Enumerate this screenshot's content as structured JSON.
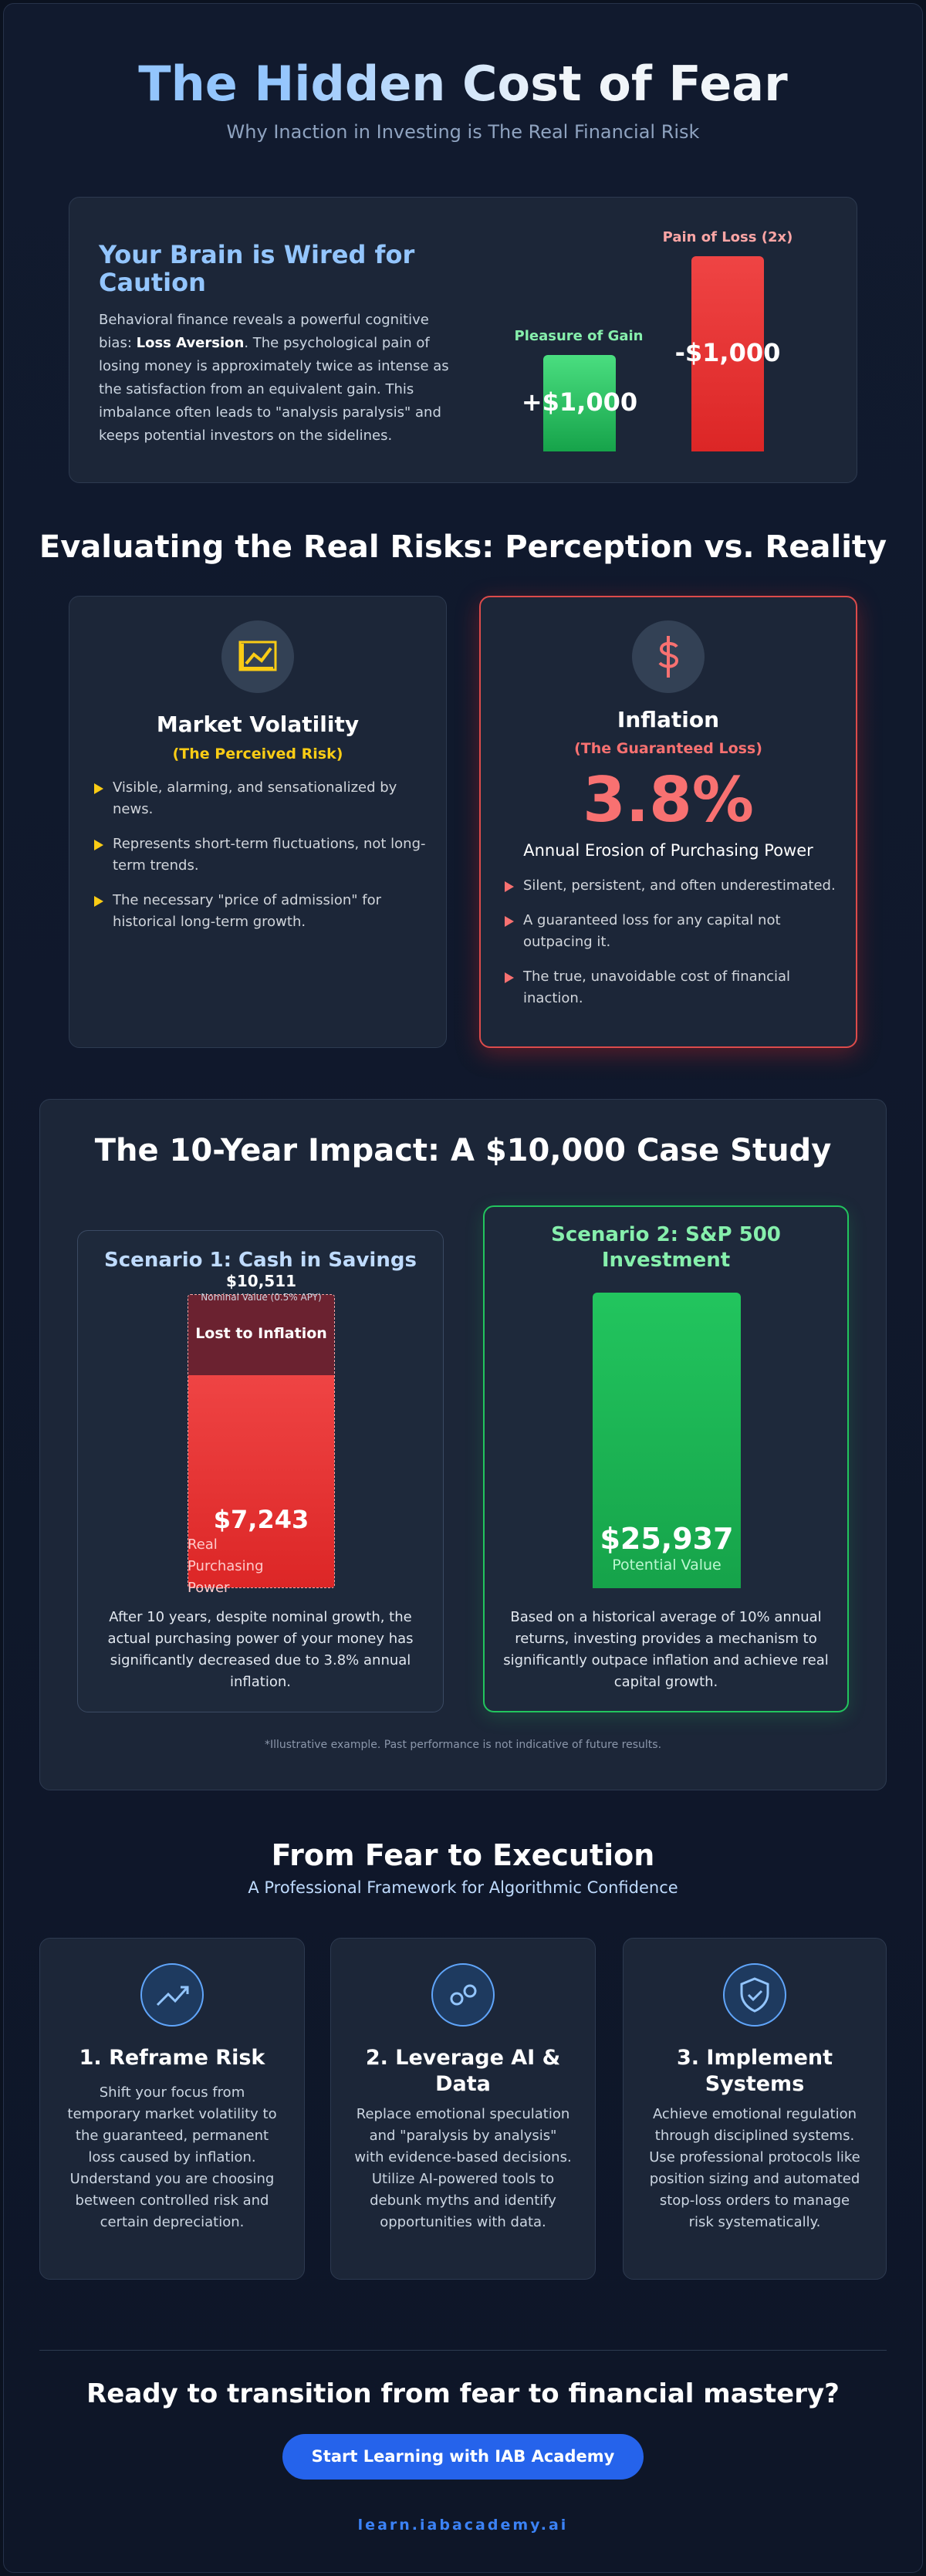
{
  "header": {
    "title": "The Hidden Cost of Fear",
    "subtitle": "Why Inaction in Investing is The Real Financial Risk"
  },
  "loss_aversion": {
    "heading": "Your Brain is Wired for Caution",
    "text_before": "Behavioral finance reveals a powerful cognitive bias: ",
    "bold": "Loss Aversion",
    "text_after": ". The psychological pain of losing money is approximately twice as intense as the satisfaction from an equivalent gain. This imbalance often leads to \"analysis paralysis\" and keeps potential investors on the sidelines.",
    "gain_label": "Pleasure of Gain",
    "gain_value": "+$1,000",
    "loss_label": "Pain of Loss (2x)",
    "loss_value": "-$1,000"
  },
  "risks": {
    "heading": "Evaluating the Real Risks: Perception vs. Reality",
    "cards": [
      {
        "title": "Market Volatility",
        "subtitle": "(The Perceived Risk)",
        "bullets": [
          "Visible, alarming, and sensationalized by news.",
          "Represents short-term fluctuations, not long-term trends.",
          "The necessary \"price of admission\" for historical long-term growth."
        ]
      },
      {
        "title": "Inflation",
        "subtitle": "(The Guaranteed Loss)",
        "rate": "3.8%",
        "rate_caption": "Annual Erosion of Purchasing Power",
        "bullets": [
          "Silent, persistent, and often underestimated.",
          "A guaranteed loss for any capital not outpacing it.",
          "The true, unavoidable cost of financial inaction."
        ]
      }
    ]
  },
  "case_study": {
    "heading": "The 10-Year Impact: A $10,000 Case Study",
    "scenarios": [
      {
        "title": "Scenario 1: Cash in Savings",
        "nominal_value": "$10,511",
        "nominal_caption": "Nominal Value (0.5% APY)",
        "lost_label": "Lost to Inflation",
        "real_value": "$7,243",
        "real_caption": "Real Purchasing Power",
        "description": "After 10 years, despite nominal growth, the actual purchasing power of your money has significantly decreased due to 3.8% annual inflation."
      },
      {
        "title": "Scenario 2: S&P 500 Investment",
        "value": "$25,937",
        "value_caption": "Potential Value",
        "description": "Based on a historical average of 10% annual returns, investing provides a mechanism to significantly outpace inflation and achieve real capital growth."
      }
    ],
    "footnote": "*Illustrative example. Past performance is not indicative of future results."
  },
  "framework": {
    "heading": "From Fear to Execution",
    "subtitle": "A Professional Framework for Algorithmic Confidence",
    "steps": [
      {
        "title": "1. Reframe Risk",
        "text": "Shift your focus from temporary market volatility to the guaranteed, permanent loss caused by inflation. Understand you are choosing between controlled risk and certain depreciation."
      },
      {
        "title": "2. Leverage AI & Data",
        "text": "Replace emotional speculation and \"paralysis by analysis\" with evidence-based decisions. Utilize AI-powered tools to debunk myths and identify opportunities with data."
      },
      {
        "title": "3. Implement Systems",
        "text": "Achieve emotional regulation through disciplined systems. Use professional protocols like position sizing and automated stop-loss orders to manage risk systematically."
      }
    ]
  },
  "cta": {
    "heading": "Ready to transition from fear to financial mastery?",
    "button": "Start Learning with IAB Academy",
    "url": "learn.iabacademy.ai"
  }
}
